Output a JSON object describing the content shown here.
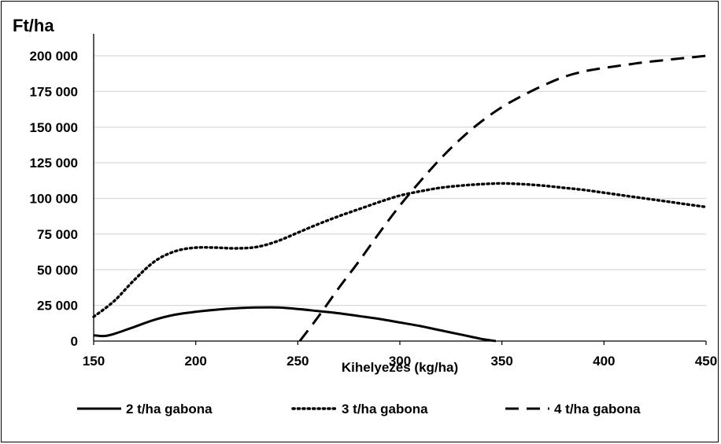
{
  "chart_data": {
    "type": "line",
    "ylabel": "Ft/ha",
    "xlabel": "Kihelyezés (kg/ha)",
    "xlim": [
      150,
      450
    ],
    "ylim": [
      0,
      200000
    ],
    "x_ticks": [
      150,
      200,
      250,
      300,
      350,
      400,
      450
    ],
    "x_tick_labels": [
      "150",
      "200",
      "250",
      "300",
      "350",
      "400",
      "450"
    ],
    "y_ticks": [
      0,
      25000,
      50000,
      75000,
      100000,
      125000,
      150000,
      175000,
      200000
    ],
    "y_tick_labels": [
      "0",
      "25 000",
      "50 000",
      "75 000",
      "100 000",
      "125 000",
      "150 000",
      "175 000",
      "200 000"
    ],
    "grid": "horizontal",
    "legend_position": "bottom",
    "series": [
      {
        "name": "2 t/ha gabona",
        "style": "solid",
        "color": "#000000",
        "x": [
          150,
          155,
          160,
          170,
          180,
          190,
          200,
          210,
          220,
          230,
          240,
          250,
          260,
          270,
          280,
          290,
          300,
          310,
          320,
          330,
          340,
          347
        ],
        "y": [
          4000,
          3500,
          5000,
          10000,
          15000,
          18500,
          20500,
          22000,
          23000,
          23500,
          23500,
          22500,
          21000,
          19500,
          17500,
          15500,
          13000,
          10500,
          7500,
          4500,
          1500,
          0
        ]
      },
      {
        "name": "3 t/ha gabona",
        "style": "dotted",
        "color": "#000000",
        "x": [
          150,
          160,
          170,
          180,
          190,
          200,
          210,
          220,
          230,
          240,
          250,
          260,
          270,
          280,
          290,
          300,
          310,
          320,
          330,
          340,
          350,
          360,
          370,
          380,
          390,
          400,
          410,
          420,
          430,
          440,
          450
        ],
        "y": [
          17000,
          28000,
          43000,
          56000,
          63000,
          65500,
          65500,
          65000,
          66000,
          70000,
          76000,
          82000,
          87500,
          92500,
          97500,
          102000,
          105000,
          107500,
          109000,
          110000,
          110500,
          110000,
          109000,
          107500,
          106000,
          104000,
          102000,
          100000,
          98000,
          96000,
          94000
        ]
      },
      {
        "name": "4 t/ha gabona",
        "style": "dashed",
        "color": "#000000",
        "x": [
          251,
          260,
          270,
          280,
          290,
          300,
          310,
          320,
          330,
          340,
          350,
          360,
          370,
          380,
          390,
          400,
          410,
          420,
          430,
          440,
          450
        ],
        "y": [
          0,
          17000,
          37000,
          56000,
          76000,
          95000,
          112000,
          128000,
          142000,
          154000,
          164000,
          172000,
          179000,
          185000,
          189000,
          191500,
          193500,
          195500,
          197000,
          198500,
          200000
        ]
      }
    ]
  }
}
